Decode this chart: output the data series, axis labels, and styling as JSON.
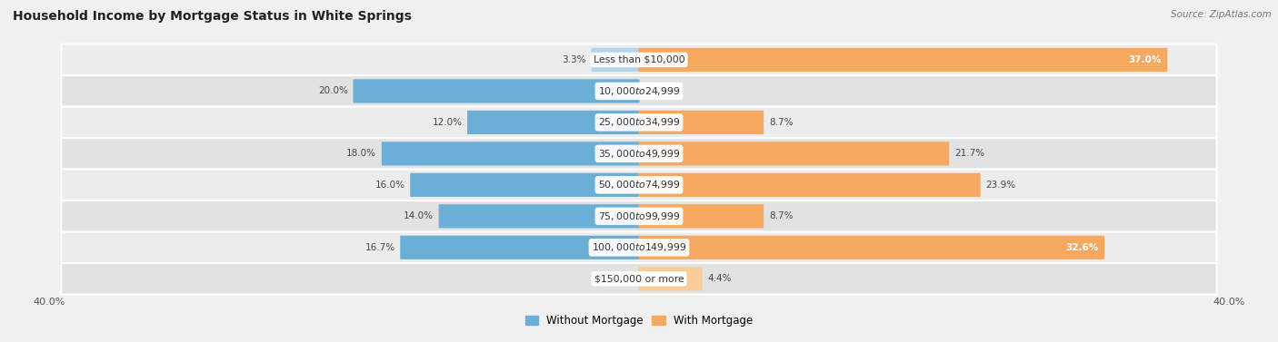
{
  "title": "Household Income by Mortgage Status in White Springs",
  "source": "Source: ZipAtlas.com",
  "categories": [
    "Less than $10,000",
    "$10,000 to $24,999",
    "$25,000 to $34,999",
    "$35,000 to $49,999",
    "$50,000 to $74,999",
    "$75,000 to $99,999",
    "$100,000 to $149,999",
    "$150,000 or more"
  ],
  "without_mortgage": [
    3.3,
    20.0,
    12.0,
    18.0,
    16.0,
    14.0,
    16.7,
    0.0
  ],
  "with_mortgage": [
    37.0,
    0.0,
    8.7,
    21.7,
    23.9,
    8.7,
    32.6,
    4.4
  ],
  "blue_color": "#6baed6",
  "orange_color": "#f4a860",
  "blue_light_color": "#b3d4eb",
  "orange_light_color": "#f9cc99",
  "row_color_odd": "#ebebeb",
  "row_color_even": "#e0e0e0",
  "xlim": 40.0,
  "legend_without": "Without Mortgage",
  "legend_with": "With Mortgage",
  "axis_label_left": "40.0%",
  "axis_label_right": "40.0%",
  "white_label_threshold": 25.0,
  "label_inside_threshold": 15.0
}
